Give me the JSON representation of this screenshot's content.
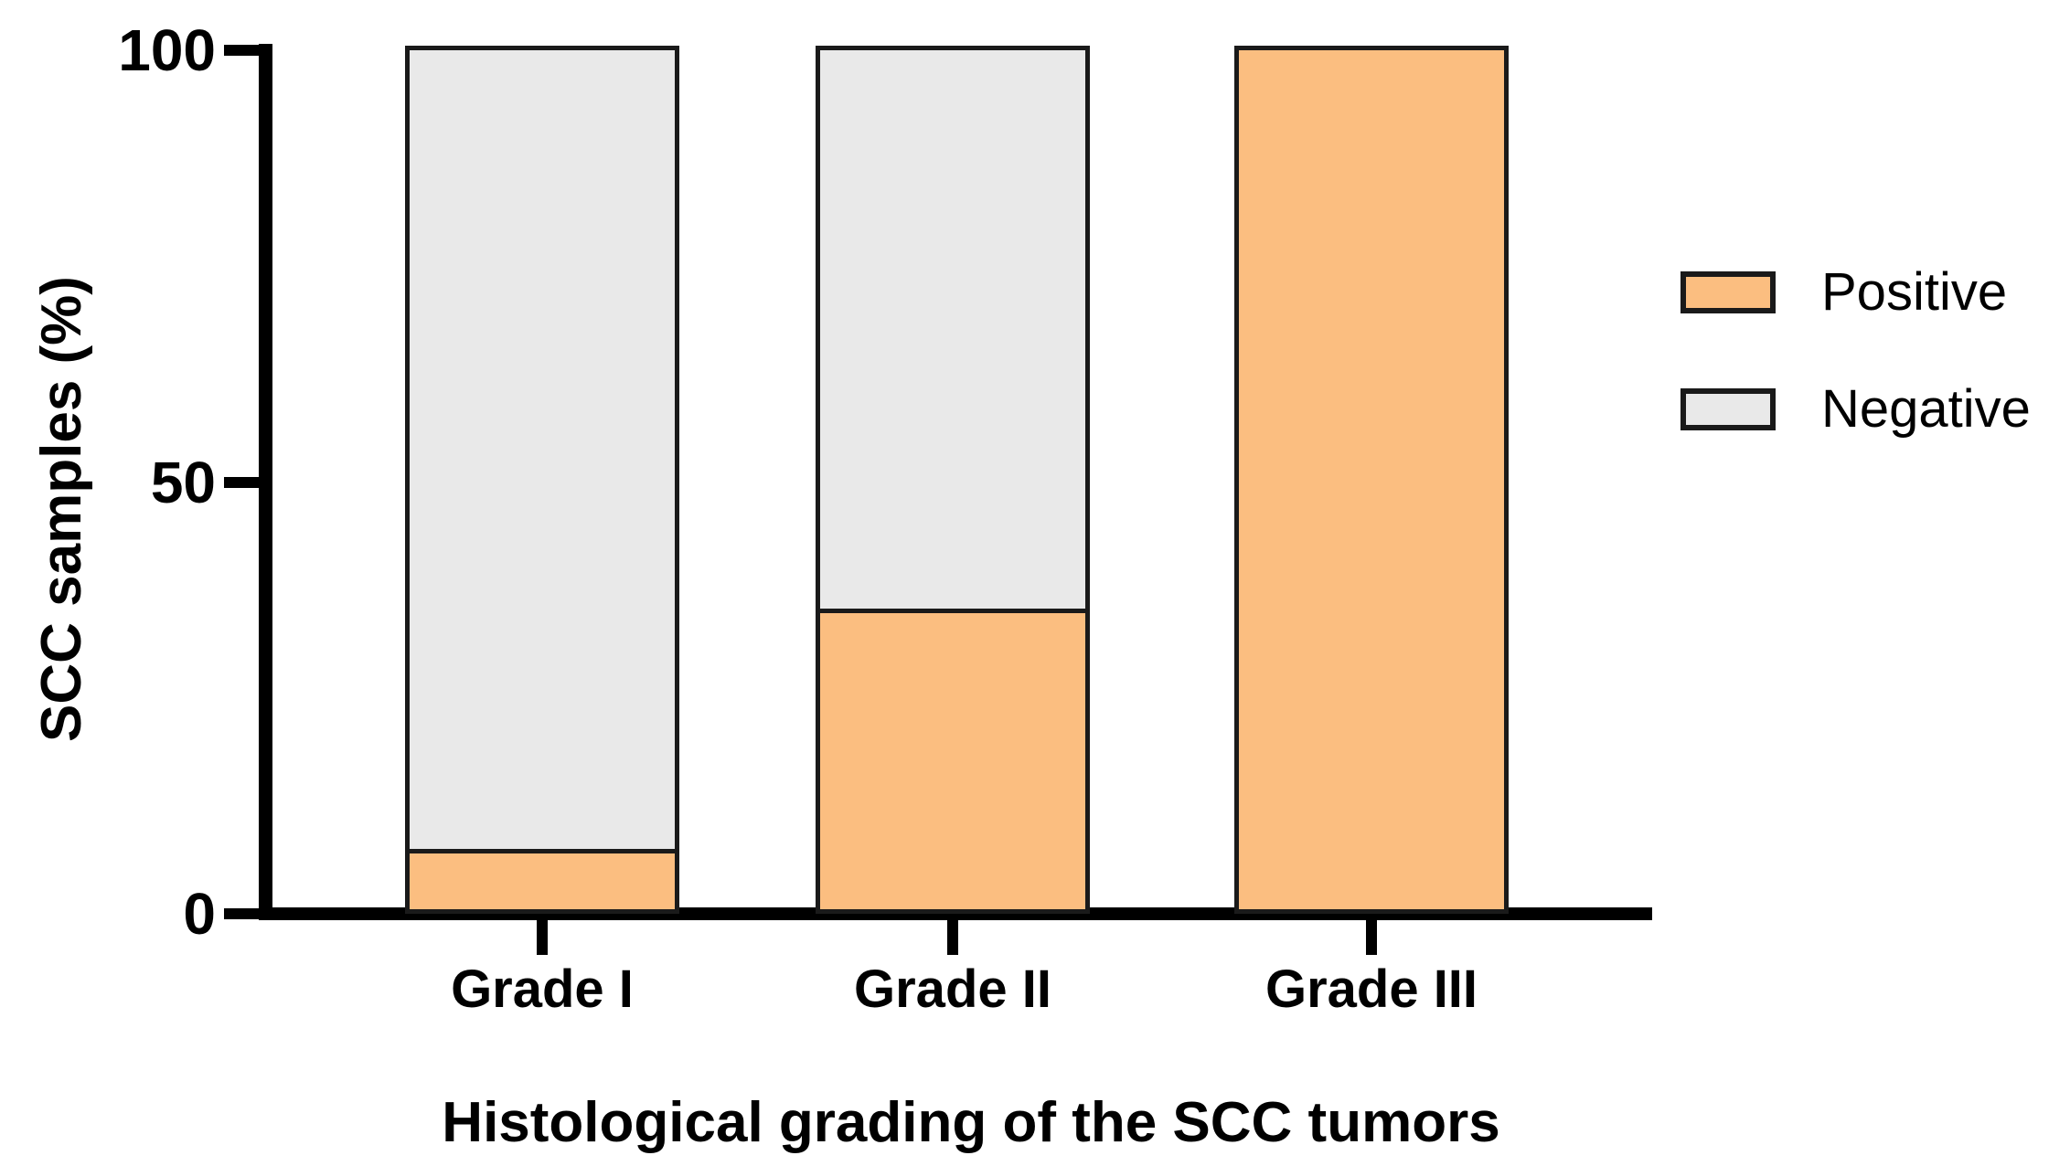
{
  "chart_data": {
    "type": "bar",
    "stacked": true,
    "orientation": "vertical",
    "title": "",
    "xlabel": "Histological grading of the SCC tumors",
    "ylabel": "SCC samples (%)",
    "categories": [
      "Grade I",
      "Grade II",
      "Grade III"
    ],
    "series": [
      {
        "name": "Positive",
        "color": "#FBBE80",
        "values": [
          7,
          35,
          100
        ]
      },
      {
        "name": "Negative",
        "color": "#E9E9E9",
        "values": [
          93,
          65,
          0
        ]
      }
    ],
    "ylim": [
      0,
      100
    ],
    "yticks": [
      {
        "value": 0,
        "label": "0"
      },
      {
        "value": 50,
        "label": "50"
      },
      {
        "value": 100,
        "label": "100"
      }
    ],
    "grid": false,
    "legend_position": "right",
    "axis_color": "#000000",
    "bar_border_color": "#1a1a1a"
  }
}
